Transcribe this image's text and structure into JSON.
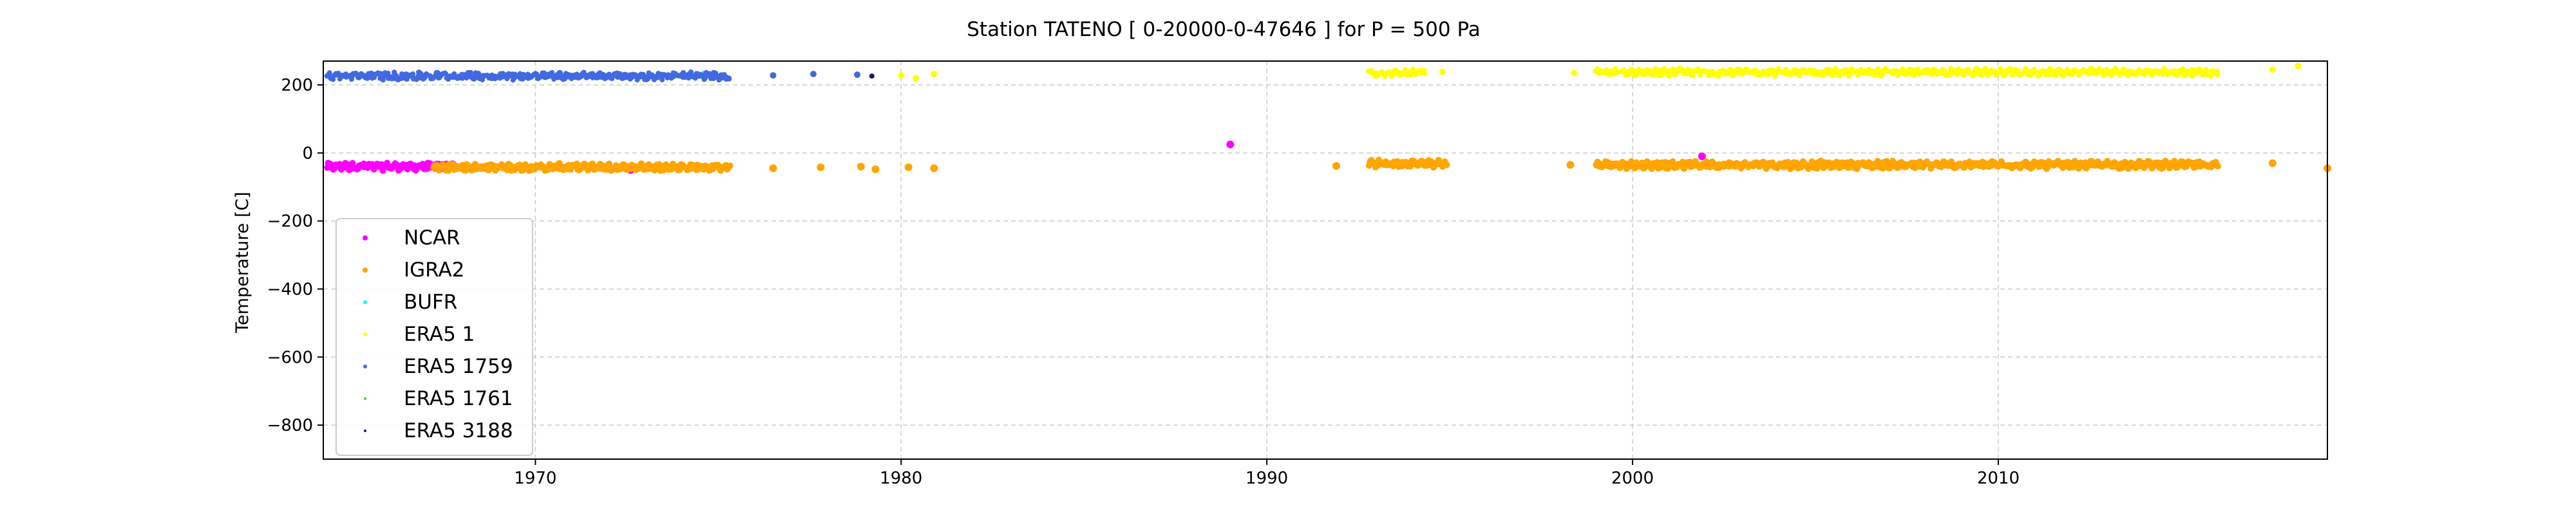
{
  "chart_data": {
    "type": "scatter",
    "title": "Station  TATENO [ 0-20000-0-47646 ]  for P = 500 Pa",
    "xlabel": "",
    "ylabel": "Temperature [C]",
    "xlim": [
      1964.2,
      2019.0
    ],
    "ylim": [
      -900,
      270
    ],
    "x_ticks": [
      1970,
      1980,
      1990,
      2000,
      2010
    ],
    "y_ticks": [
      200,
      0,
      -200,
      -400,
      -600,
      -800
    ],
    "grid": true,
    "legend_position": "lower-left",
    "series": [
      {
        "name": "NCAR",
        "color": "#ff00ff",
        "marker_size": 4,
        "segments": [
          [
            1964.3,
            1967.8,
            -40
          ]
        ],
        "points": [
          [
            1972.6,
            -50
          ],
          [
            1989.0,
            25
          ],
          [
            1994.5,
            -30
          ],
          [
            2001.9,
            -10
          ]
        ]
      },
      {
        "name": "IGRA2",
        "color": "#ffa500",
        "marker_size": 4,
        "segments": [
          [
            1967.2,
            1975.3,
            -42
          ],
          [
            1992.8,
            1994.9,
            -32
          ],
          [
            1999.0,
            2016.0,
            -35
          ]
        ],
        "points": [
          [
            1976.5,
            -45
          ],
          [
            1977.8,
            -42
          ],
          [
            1978.9,
            -40
          ],
          [
            1979.3,
            -48
          ],
          [
            1980.2,
            -42
          ],
          [
            1980.9,
            -45
          ],
          [
            1991.9,
            -38
          ],
          [
            1998.3,
            -35
          ],
          [
            2017.5,
            -30
          ],
          [
            2019.0,
            -45
          ]
        ]
      },
      {
        "name": "BUFR",
        "color": "#00ffff",
        "marker_size": 3,
        "segments": [],
        "points": [
          [
            1974.3,
            228
          ],
          [
            1974.6,
            232
          ]
        ]
      },
      {
        "name": "ERA5 1",
        "color": "#ffff00",
        "marker_size": 3,
        "segments": [
          [
            1992.8,
            1994.3,
            235
          ],
          [
            1999.0,
            2016.0,
            237
          ]
        ],
        "points": [
          [
            1980.0,
            228
          ],
          [
            1980.4,
            220
          ],
          [
            1980.9,
            232
          ],
          [
            1994.8,
            238
          ],
          [
            1998.4,
            235
          ],
          [
            2017.5,
            245
          ],
          [
            2018.2,
            255
          ]
        ]
      },
      {
        "name": "ERA5 1759",
        "color": "#4169e1",
        "marker_size": 3,
        "segments": [
          [
            1964.3,
            1975.3,
            226
          ]
        ],
        "points": [
          [
            1976.5,
            228
          ],
          [
            1977.6,
            232
          ],
          [
            1978.8,
            230
          ]
        ]
      },
      {
        "name": "ERA5 1761",
        "color": "#32cd32",
        "marker_size": 2,
        "segments": [],
        "points": []
      },
      {
        "name": "ERA5 3188",
        "color": "#191970",
        "marker_size": 2,
        "segments": [],
        "points": [
          [
            1979.2,
            226
          ]
        ]
      }
    ]
  }
}
